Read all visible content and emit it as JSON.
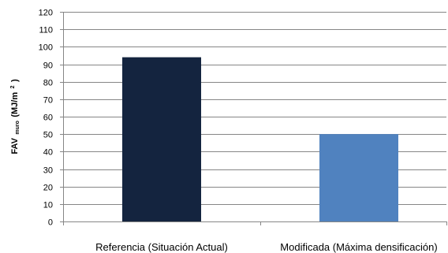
{
  "chart_data": {
    "type": "bar",
    "categories": [
      "Referencia (Situación Actual)",
      "Modificada (Máxima densificación)"
    ],
    "values": [
      94,
      50
    ],
    "ylim": [
      0,
      120
    ],
    "ytick_step": 10,
    "yticks": [
      "0",
      "10",
      "20",
      "30",
      "40",
      "50",
      "60",
      "70",
      "80",
      "90",
      "100",
      "110",
      "120"
    ],
    "ylabel": {
      "main": "FAV",
      "subscript": "muro",
      "unit_pre": "(MJ/m",
      "unit_sup": "2",
      "unit_post": ")"
    },
    "xlabel": "",
    "grid": true,
    "legend": "none",
    "colors": [
      "#14243f",
      "#5082bf"
    ]
  }
}
